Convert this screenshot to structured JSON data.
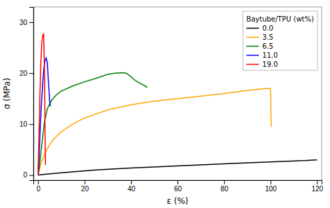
{
  "chart_data": {
    "type": "line",
    "xlabel": "ε (%)",
    "ylabel": "σ (MPa)",
    "xlim": [
      -2,
      122
    ],
    "ylim": [
      -1,
      33
    ],
    "xticks": [
      0,
      20,
      40,
      60,
      80,
      100,
      120
    ],
    "yticks": [
      0,
      10,
      20,
      30
    ],
    "legend_title": "Baytube/TPU (wt%)",
    "legend": "upper right",
    "grid": false,
    "series": [
      {
        "name": "0.0",
        "color": "black",
        "x": [
          0,
          3,
          8,
          15,
          25,
          40,
          55,
          70,
          85,
          100,
          115,
          120
        ],
        "values": [
          0,
          0.15,
          0.35,
          0.65,
          1.0,
          1.4,
          1.7,
          2.0,
          2.3,
          2.6,
          2.85,
          3.0
        ]
      },
      {
        "name": "3.5",
        "color": "orange",
        "x": [
          0,
          0.5,
          1.0,
          1.5,
          2.0,
          3.0,
          4.0,
          5.0,
          7.0,
          10.0,
          15.0,
          20.0,
          30.0,
          40.0,
          50.0,
          60.0,
          70.0,
          80.0,
          90.0,
          98.0,
          100.0,
          100.3
        ],
        "values": [
          0,
          0.8,
          1.8,
          2.6,
          3.2,
          4.2,
          5.2,
          6.0,
          7.2,
          8.5,
          10.0,
          11.2,
          12.8,
          13.8,
          14.5,
          15.0,
          15.5,
          16.0,
          16.6,
          17.0,
          17.0,
          9.5
        ]
      },
      {
        "name": "6.5",
        "color": "green",
        "x": [
          0,
          0.5,
          1.0,
          1.5,
          2.0,
          2.5,
          3.0,
          4.0,
          5.0,
          6.0,
          8.0,
          10.0,
          15.0,
          20.0,
          25.0,
          30.0,
          33.0,
          36.0,
          38.0,
          40.0,
          42.0,
          44.0,
          46.0,
          47.0
        ],
        "values": [
          0,
          1.5,
          3.5,
          5.5,
          7.5,
          9.5,
          11.0,
          13.0,
          14.0,
          14.8,
          15.8,
          16.5,
          17.5,
          18.3,
          19.0,
          19.8,
          20.0,
          20.1,
          20.0,
          19.3,
          18.5,
          18.0,
          17.5,
          17.2
        ]
      },
      {
        "name": "11.0",
        "color": "blue",
        "x": [
          0,
          0.3,
          0.6,
          1.0,
          1.5,
          2.0,
          2.5,
          3.0,
          3.5,
          4.0,
          4.5,
          5.0,
          5.3
        ],
        "values": [
          0,
          2.0,
          5.5,
          10.0,
          14.5,
          18.0,
          21.0,
          22.5,
          23.0,
          22.0,
          18.0,
          14.5,
          13.5
        ]
      },
      {
        "name": "19.0",
        "color": "red",
        "x": [
          0,
          0.2,
          0.5,
          0.8,
          1.2,
          1.6,
          2.0,
          2.4,
          2.8,
          3.0,
          3.2
        ],
        "values": [
          0,
          4.0,
          10.0,
          16.0,
          22.0,
          26.0,
          27.5,
          27.7,
          20.0,
          8.0,
          2.0
        ]
      }
    ]
  }
}
